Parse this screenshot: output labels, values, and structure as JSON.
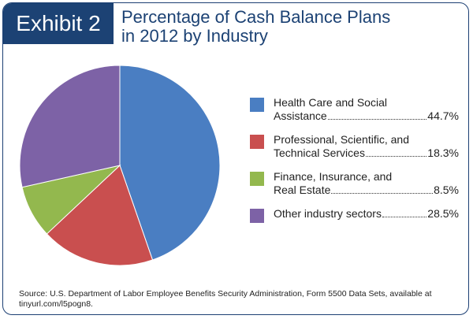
{
  "header": {
    "exhibit_label": "Exhibit 2",
    "title_line1": "Percentage of Cash Balance Plans",
    "title_line2": "in 2012 by Industry"
  },
  "chart_data": {
    "type": "pie",
    "title": "Percentage of Cash Balance Plans in 2012 by Industry",
    "legend_position": "right",
    "slices": [
      {
        "label_line1": "Health Care and Social",
        "label_line2": "Assistance",
        "value": 44.7,
        "value_label": "44.7%",
        "color": "#4a7ec2"
      },
      {
        "label_line1": "Professional, Scientific, and",
        "label_line2": "Technical Services",
        "value": 18.3,
        "value_label": "18.3%",
        "color": "#c94f4f"
      },
      {
        "label_line1": "Finance, Insurance, and",
        "label_line2": "Real Estate",
        "value": 8.5,
        "value_label": "8.5%",
        "color": "#93b84e"
      },
      {
        "label_line1": "",
        "label_line2": "Other industry sectors",
        "value": 28.5,
        "value_label": "28.5%",
        "color": "#7d62a6"
      }
    ]
  },
  "footer": {
    "source_line1": "Source: U.S. Department of Labor Employee Benefits Security Administration, Form 5500 Data Sets, available at",
    "source_line2": "tinyurl.com/l5pogn8."
  }
}
